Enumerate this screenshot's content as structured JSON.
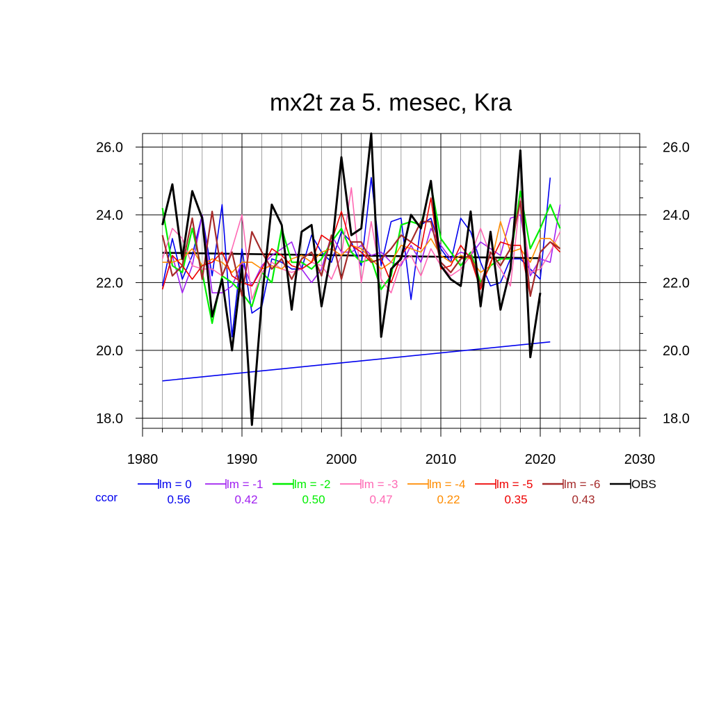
{
  "chart_data": {
    "type": "line",
    "title": "mx2t za 5. mesec, Kra",
    "xlabel": "",
    "ylabel": "",
    "xlim": [
      1980,
      2030
    ],
    "ylim": [
      17.7,
      26.4
    ],
    "x_ticks": [
      1980,
      1990,
      2000,
      2010,
      2020,
      2030
    ],
    "x_tick_labels": [
      "1980",
      "1990",
      "2000",
      "2010",
      "2020",
      "2030"
    ],
    "y_ticks": [
      18,
      20,
      22,
      24,
      26
    ],
    "y_tick_labels": [
      "18.0",
      "20.0",
      "22.0",
      "24.0",
      "26.0"
    ],
    "grid": true,
    "legend_placement": "bottom",
    "ccor_label": "ccor",
    "series": [
      {
        "name": "lm = 0",
        "color": "#0000ee",
        "width": 1.6,
        "ccor": "0.56",
        "start": 1982,
        "values": [
          21.9,
          23.3,
          22.1,
          22.8,
          24.0,
          22.2,
          24.3,
          20.4,
          23.0,
          21.1,
          21.3,
          22.7,
          22.6,
          22.4,
          22.4,
          23.4,
          22.9,
          22.6,
          23.5,
          23.2,
          22.5,
          25.1,
          22.5,
          23.8,
          23.9,
          21.5,
          23.7,
          23.9,
          23.0,
          22.6,
          23.9,
          23.5,
          22.6,
          21.9,
          22.0,
          22.7,
          22.7,
          22.4,
          22.1,
          25.1
        ],
        "trend": [
          19.1,
          20.25
        ]
      },
      {
        "name": "lm = -1",
        "color": "#a020f0",
        "width": 1.6,
        "ccor": "0.42",
        "start": 1982,
        "values": [
          21.8,
          22.8,
          21.7,
          22.5,
          24.0,
          21.7,
          21.7,
          21.9,
          22.6,
          21.9,
          22.5,
          22.8,
          23.0,
          23.2,
          22.4,
          22.0,
          22.4,
          23.4,
          22.9,
          22.9,
          23.1,
          22.8,
          22.9,
          22.6,
          22.5,
          23.1,
          22.6,
          23.6,
          23.1,
          22.7,
          22.9,
          22.8,
          23.2,
          23.0,
          22.8,
          23.9,
          24.0,
          22.2,
          22.7,
          22.6,
          24.3
        ],
        "trend": null
      },
      {
        "name": "lm = -2",
        "color": "#00ee00",
        "width": 2.2,
        "ccor": "0.50",
        "start": 1982,
        "values": [
          24.2,
          22.5,
          22.3,
          23.6,
          22.3,
          20.8,
          22.2,
          22.0,
          21.7,
          21.3,
          22.3,
          22.0,
          23.6,
          22.6,
          22.6,
          22.4,
          22.7,
          23.2,
          23.6,
          22.9,
          22.6,
          22.7,
          21.8,
          22.2,
          23.7,
          23.8,
          23.7,
          24.9,
          23.3,
          22.9,
          22.5,
          22.9,
          22.0,
          22.5,
          22.7,
          22.7,
          24.7,
          23.0,
          23.6,
          24.3,
          23.6
        ],
        "trend": null
      },
      {
        "name": "lm = -3",
        "color": "#ff69b4",
        "width": 1.6,
        "ccor": "0.47",
        "start": 1982,
        "values": [
          22.7,
          23.6,
          23.3,
          22.5,
          22.4,
          22.4,
          22.2,
          23.0,
          24.0,
          21.5,
          22.3,
          22.6,
          22.4,
          22.3,
          22.4,
          22.6,
          22.5,
          22.1,
          22.8,
          24.8,
          22.0,
          23.8,
          22.1,
          21.7,
          22.6,
          22.8,
          22.2,
          23.0,
          22.5,
          22.2,
          22.4,
          22.8,
          23.6,
          22.8,
          22.4,
          21.9,
          24.5,
          22.3,
          22.4,
          22.9,
          23.5
        ],
        "trend": null
      },
      {
        "name": "lm = -4",
        "color": "#ff8c00",
        "width": 1.6,
        "ccor": "0.22",
        "start": 1982,
        "values": [
          22.6,
          22.6,
          22.7,
          23.0,
          22.5,
          22.7,
          22.6,
          22.3,
          22.6,
          22.6,
          22.4,
          22.5,
          22.4,
          22.7,
          22.8,
          22.6,
          22.9,
          23.0,
          22.8,
          23.1,
          23.0,
          22.7,
          22.4,
          22.6,
          23.1,
          23.0,
          22.9,
          23.3,
          22.8,
          22.6,
          22.8,
          22.7,
          22.3,
          22.5,
          23.8,
          22.9,
          23.0,
          22.6,
          23.3,
          23.3,
          23.0
        ],
        "trend": null
      },
      {
        "name": "lm = -5",
        "color": "#ee0000",
        "width": 1.6,
        "ccor": "0.35",
        "start": 1982,
        "values": [
          21.8,
          22.8,
          22.5,
          22.1,
          22.5,
          22.6,
          22.9,
          22.2,
          22.0,
          21.9,
          22.4,
          23.0,
          22.8,
          22.5,
          22.4,
          22.6,
          23.4,
          23.2,
          24.1,
          23.1,
          22.9,
          22.6,
          22.7,
          22.0,
          22.8,
          23.2,
          23.0,
          24.5,
          22.4,
          22.5,
          23.1,
          22.7,
          21.8,
          22.6,
          23.2,
          23.1,
          23.1,
          21.6,
          22.9,
          23.2,
          22.9
        ],
        "trend": null
      },
      {
        "name": "lm = -6",
        "color": "#a52a2a",
        "width": 2.2,
        "ccor": "0.43",
        "start": 1982,
        "values": [
          23.4,
          22.2,
          22.5,
          23.9,
          22.1,
          24.1,
          22.2,
          22.9,
          21.6,
          23.5,
          22.9,
          22.4,
          22.7,
          22.1,
          22.7,
          22.9,
          22.2,
          23.4,
          22.1,
          23.2,
          23.2,
          22.6,
          22.7,
          23.0,
          23.4,
          23.2,
          23.8,
          23.8,
          22.6,
          22.3,
          22.7,
          22.8,
          21.9,
          22.9,
          22.5,
          23.0,
          24.4,
          21.6,
          22.9,
          23.2,
          23.0
        ],
        "trend": null
      },
      {
        "name": "OBS",
        "color": "#000000",
        "width": 3.0,
        "ccor": "",
        "start": 1982,
        "values": [
          23.7,
          24.9,
          22.7,
          24.7,
          23.9,
          21.0,
          22.1,
          20.0,
          22.5,
          17.8,
          21.5,
          24.3,
          23.7,
          21.2,
          23.5,
          23.7,
          21.3,
          22.9,
          25.7,
          23.4,
          23.6,
          26.4,
          20.4,
          22.4,
          22.7,
          24.0,
          23.6,
          25.0,
          22.5,
          22.1,
          21.9,
          24.1,
          21.3,
          23.5,
          21.2,
          22.4,
          25.9,
          19.8,
          21.7
        ],
        "trend": [
          22.88,
          22.72
        ]
      }
    ]
  }
}
